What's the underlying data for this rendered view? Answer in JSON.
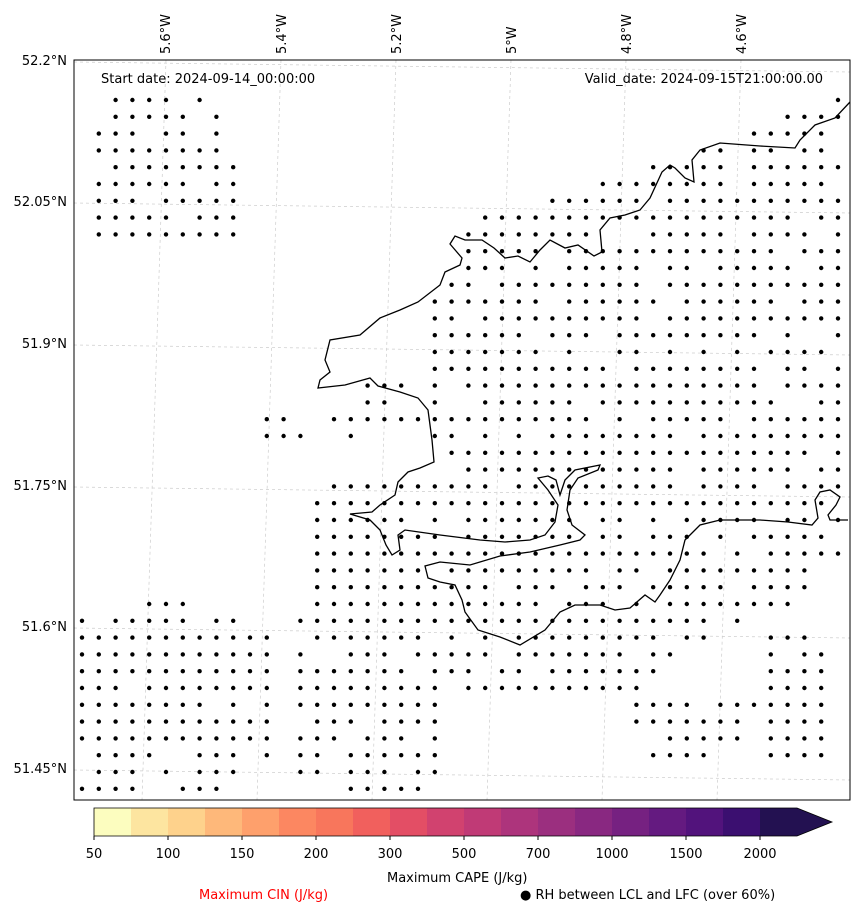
{
  "header": {
    "start_date": "Start date: 2024-09-14_00:00:00",
    "valid_date": "Valid_date: 2024-09-15T21:00:00.00"
  },
  "map": {
    "lon_labels": [
      "5.6°W",
      "5.4°W",
      "5.2°W",
      "5°W",
      "4.8°W",
      "4.6°W"
    ],
    "lat_labels": [
      "52.2°N",
      "52.05°N",
      "51.9°N",
      "51.75°N",
      "51.6°N",
      "51.45°N"
    ],
    "lon_range": [
      -5.73,
      -4.48
    ],
    "lat_range": [
      51.42,
      52.2
    ],
    "marker": "RH point",
    "gridlines": true
  },
  "colorbar": {
    "label": "Maximum CAPE (J/kg)",
    "ticks": [
      "50",
      "100",
      "150",
      "200",
      "300",
      "500",
      "700",
      "1000",
      "1500",
      "2000"
    ],
    "colors": [
      "#fcfdbf",
      "#fde5a0",
      "#fed28c",
      "#feb87a",
      "#fea06c",
      "#fc8761",
      "#f8765c",
      "#f1605d",
      "#e34e65",
      "#d1426f",
      "#c03a76",
      "#ad347c",
      "#9b2f7f",
      "#892881",
      "#762181",
      "#641a80",
      "#52137c",
      "#3b0f70",
      "#231151"
    ],
    "extend": "max"
  },
  "legend": {
    "cin_label": "Maximum CIN (J/kg)",
    "cin_color": "#ff0000",
    "rh_label": "● RH between LCL and LFC (over 60%)"
  }
}
